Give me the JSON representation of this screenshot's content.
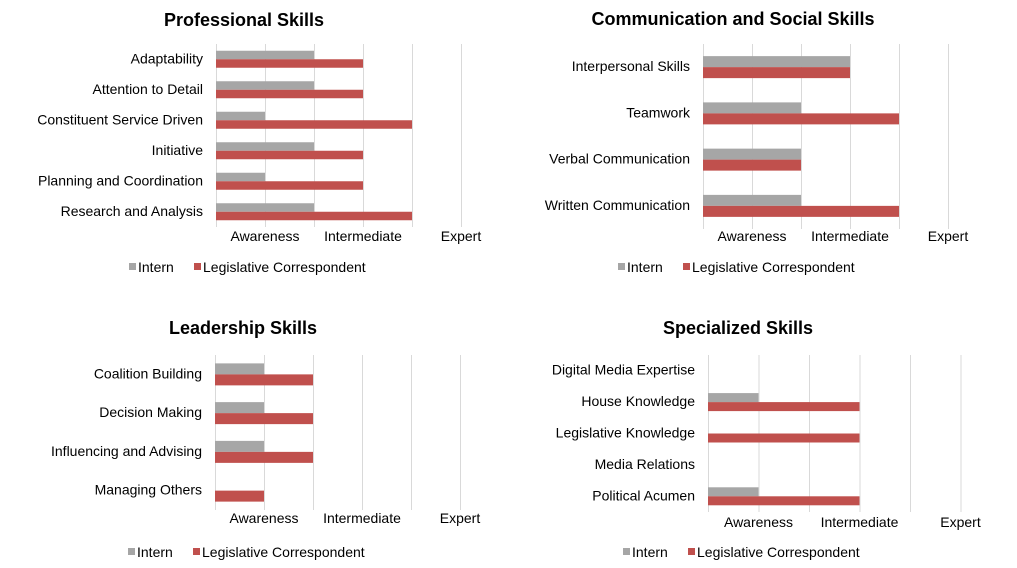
{
  "colors": {
    "intern": "#a6a6a6",
    "legislative_correspondent": "#c0504d",
    "gridline": "#d9d9d9"
  },
  "chart_data": [
    {
      "type": "bar",
      "orientation": "horizontal",
      "title": "Professional Skills",
      "categories": [
        "Adaptability",
        "Attention to Detail",
        "Constituent Service Driven",
        "Initiative",
        "Planning and Coordination",
        "Research and Analysis"
      ],
      "xticks": [
        "Awareness",
        "Intermediate",
        "Expert"
      ],
      "xlim": [
        0,
        5
      ],
      "grid": true,
      "legend": "bottom",
      "series": [
        {
          "name": "Intern",
          "values": [
            2,
            2,
            1,
            2,
            1,
            2
          ]
        },
        {
          "name": "Legislative Correspondent",
          "values": [
            3,
            3,
            4,
            3,
            3,
            4
          ]
        }
      ]
    },
    {
      "type": "bar",
      "orientation": "horizontal",
      "title": "Communication and Social Skills",
      "categories": [
        "Interpersonal Skills",
        "Teamwork",
        "Verbal Communication",
        "Written Communication"
      ],
      "xticks": [
        "Awareness",
        "Intermediate",
        "Expert"
      ],
      "xlim": [
        0,
        5
      ],
      "grid": true,
      "legend": "bottom",
      "series": [
        {
          "name": "Intern",
          "values": [
            3,
            2,
            2,
            2
          ]
        },
        {
          "name": "Legislative Correspondent",
          "values": [
            3,
            4,
            2,
            4
          ]
        }
      ]
    },
    {
      "type": "bar",
      "orientation": "horizontal",
      "title": "Leadership Skills",
      "categories": [
        "Coalition Building",
        "Decision Making",
        "Influencing and Advising",
        "Managing Others"
      ],
      "xticks": [
        "Awareness",
        "Intermediate",
        "Expert"
      ],
      "xlim": [
        0,
        5
      ],
      "grid": true,
      "legend": "bottom",
      "series": [
        {
          "name": "Intern",
          "values": [
            1,
            1,
            1,
            0
          ]
        },
        {
          "name": "Legislative Correspondent",
          "values": [
            2,
            2,
            2,
            1
          ]
        }
      ]
    },
    {
      "type": "bar",
      "orientation": "horizontal",
      "title": "Specialized Skills",
      "categories": [
        "Digital Media Expertise",
        "House Knowledge",
        "Legislative Knowledge",
        "Media Relations",
        "Political Acumen"
      ],
      "xticks": [
        "Awareness",
        "Intermediate",
        "Expert"
      ],
      "xlim": [
        0,
        5
      ],
      "grid": true,
      "legend": "bottom",
      "series": [
        {
          "name": "Intern",
          "values": [
            0,
            1,
            0,
            0,
            1
          ]
        },
        {
          "name": "Legislative Correspondent",
          "values": [
            0,
            3,
            3,
            0,
            3
          ]
        }
      ]
    }
  ]
}
